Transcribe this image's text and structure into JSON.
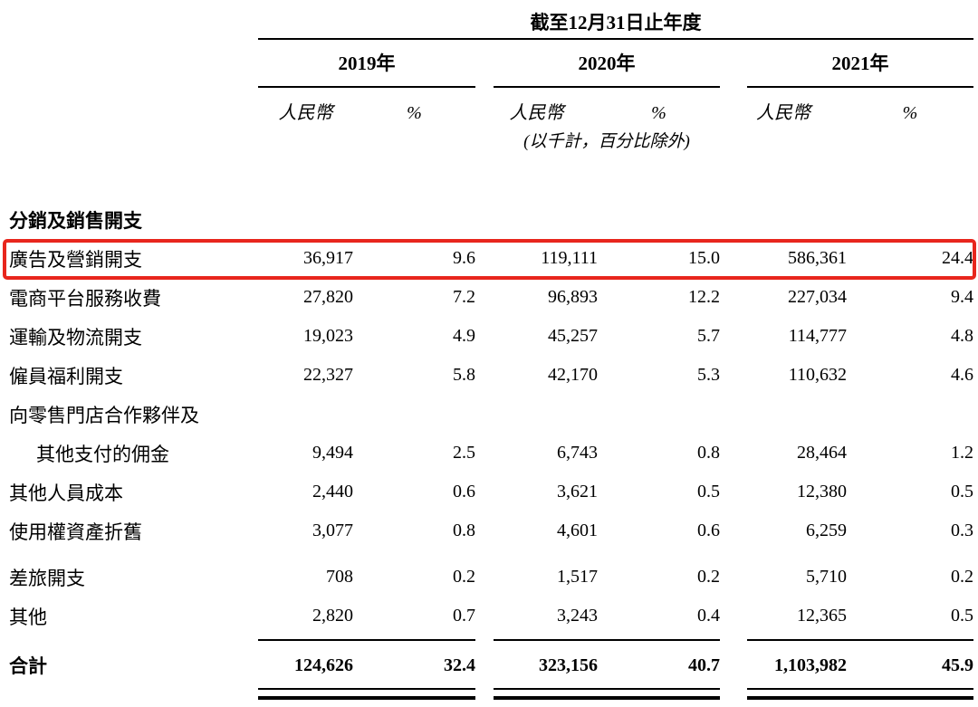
{
  "header": {
    "period_title": "截至12月31日止年度",
    "years": [
      "2019年",
      "2020年",
      "2021年"
    ],
    "col_currency": "人民幣",
    "col_percent": "%",
    "note": "(以千計，百分比除外)"
  },
  "section": {
    "title": "分銷及銷售開支"
  },
  "highlight_color": "#e8261d",
  "rows": [
    {
      "label": "廣告及營銷開支",
      "values": [
        "36,917",
        "9.6",
        "119,111",
        "15.0",
        "586,361",
        "24.4"
      ]
    },
    {
      "label": "電商平台服務收費",
      "values": [
        "27,820",
        "7.2",
        "96,893",
        "12.2",
        "227,034",
        "9.4"
      ]
    },
    {
      "label": "運輸及物流開支",
      "values": [
        "19,023",
        "4.9",
        "45,257",
        "5.7",
        "114,777",
        "4.8"
      ]
    },
    {
      "label": "僱員福利開支",
      "values": [
        "22,327",
        "5.8",
        "42,170",
        "5.3",
        "110,632",
        "4.6"
      ]
    },
    {
      "label": "向零售門店合作夥伴及",
      "values": [
        "",
        "",
        "",
        "",
        "",
        ""
      ]
    },
    {
      "label": "其他支付的佣金",
      "values": [
        "9,494",
        "2.5",
        "6,743",
        "0.8",
        "28,464",
        "1.2"
      ]
    },
    {
      "label": "其他人員成本",
      "values": [
        "2,440",
        "0.6",
        "3,621",
        "0.5",
        "12,380",
        "0.5"
      ]
    },
    {
      "label": "使用權資產折舊",
      "values": [
        "3,077",
        "0.8",
        "4,601",
        "0.6",
        "6,259",
        "0.3"
      ]
    },
    {
      "label": "差旅開支",
      "values": [
        "708",
        "0.2",
        "1,517",
        "0.2",
        "5,710",
        "0.2"
      ]
    },
    {
      "label": "其他",
      "values": [
        "2,820",
        "0.7",
        "3,243",
        "0.4",
        "12,365",
        "0.5"
      ]
    }
  ],
  "total": {
    "label": "合計",
    "values": [
      "124,626",
      "32.4",
      "323,156",
      "40.7",
      "1,103,982",
      "45.9"
    ]
  }
}
